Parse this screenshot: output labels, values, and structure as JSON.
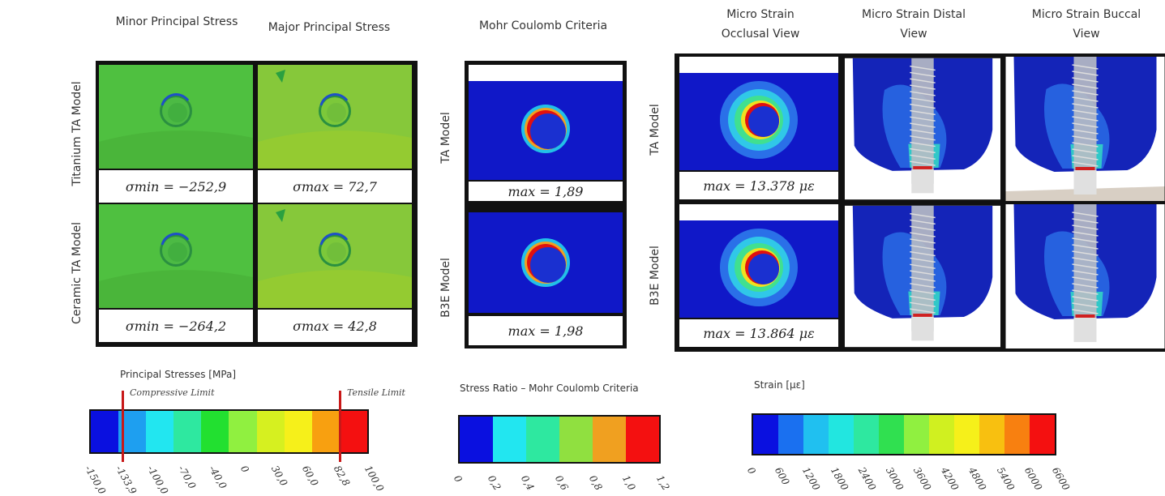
{
  "principal_stress": {
    "columns": [
      "Minor Principal Stress",
      "Major Principal Stress"
    ],
    "rows": [
      {
        "label": "Titanium TA Model",
        "values": [
          "σmin = −252,9",
          "σmax = 72,7"
        ]
      },
      {
        "label": "Ceramic TA Model",
        "values": [
          "σmin = −264,2",
          "σmax = 42,8"
        ]
      }
    ]
  },
  "mohr_coulomb": {
    "title": "Mohr Coulomb Criteria",
    "rows": [
      {
        "label": "TA Model",
        "value": "max = 1,89"
      },
      {
        "label": "B3E Model",
        "value": "max = 1,98"
      }
    ]
  },
  "micro_strain": {
    "columns": [
      "Micro Strain Occlusal View",
      "Micro Strain Distal View",
      "Micro Strain Buccal View"
    ],
    "rows": [
      {
        "label": "TA Model",
        "value": "max = 13.378 με"
      },
      {
        "label": "B3E Model",
        "value": "max = 13.864 με"
      }
    ]
  },
  "legends": [
    {
      "title": "Principal Stresses [MPa]",
      "limits": [
        "Compressive Limit",
        "Tensile Limit"
      ],
      "colors": [
        "#0a10e0",
        "#1e9ff0",
        "#22e6f0",
        "#2ee8a0",
        "#22e030",
        "#90f040",
        "#d6f020",
        "#f6f01a",
        "#f8a010",
        "#f41010"
      ],
      "ticks": [
        "-150,0",
        "-133,9",
        "-100,0",
        "-70,0",
        "-40,0",
        "0",
        "30,0",
        "60,0",
        "82,8",
        "100,0"
      ]
    },
    {
      "title": "Stress Ratio – Mohr Coulomb Criteria",
      "colors": [
        "#0a10e0",
        "#22e6f0",
        "#2ee8a0",
        "#90e040",
        "#f0a020",
        "#f41010"
      ],
      "ticks": [
        "0",
        "0,2",
        "0,4",
        "0,6",
        "0,8",
        "1,0",
        "1,2"
      ]
    },
    {
      "title": "Strain [με]",
      "colors": [
        "#0a10e0",
        "#1a70f0",
        "#20c0f0",
        "#22e6e0",
        "#2ee8a0",
        "#30e050",
        "#90f040",
        "#d0f020",
        "#f6f01a",
        "#f8c010",
        "#f88010",
        "#f41010"
      ],
      "ticks": [
        "0",
        "600",
        "1200",
        "1800",
        "2400",
        "3000",
        "3600",
        "4200",
        "4800",
        "5400",
        "6000",
        "6600"
      ]
    }
  ]
}
